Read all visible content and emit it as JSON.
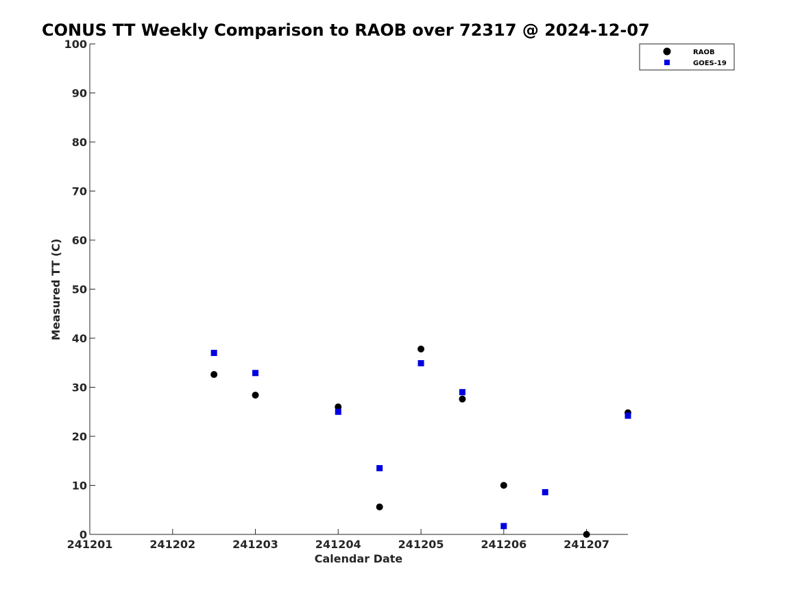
{
  "chart_data": {
    "type": "scatter",
    "title": "CONUS TT Weekly Comparison to RAOB over 72317 @ 2024-12-07",
    "xlabel": "Calendar Date",
    "ylabel": "Measured TT (C)",
    "x_tick_labels": [
      "241201",
      "241202",
      "241203",
      "241204",
      "241205",
      "241206",
      "241207"
    ],
    "x_tick_values": [
      1,
      2,
      3,
      4,
      5,
      6,
      7
    ],
    "xlim": [
      1,
      7.5
    ],
    "y_ticks": [
      0,
      10,
      20,
      30,
      40,
      50,
      60,
      70,
      80,
      90,
      100
    ],
    "ylim": [
      0,
      100
    ],
    "grid": false,
    "legend_position": "top-right",
    "series": [
      {
        "name": "RAOB",
        "color": "#000000",
        "marker": "circle",
        "points": [
          {
            "x": 2.5,
            "y": 32.6
          },
          {
            "x": 3.0,
            "y": 28.4
          },
          {
            "x": 4.0,
            "y": 26.0
          },
          {
            "x": 4.5,
            "y": 5.6
          },
          {
            "x": 5.0,
            "y": 37.8
          },
          {
            "x": 5.5,
            "y": 27.6
          },
          {
            "x": 6.0,
            "y": 10.0
          },
          {
            "x": 7.0,
            "y": 0.0
          },
          {
            "x": 7.5,
            "y": 24.8
          }
        ]
      },
      {
        "name": "GOES-19",
        "color": "#0000e0",
        "marker": "square",
        "points": [
          {
            "x": 2.5,
            "y": 37.0
          },
          {
            "x": 3.0,
            "y": 32.9
          },
          {
            "x": 4.0,
            "y": 25.0
          },
          {
            "x": 4.5,
            "y": 13.5
          },
          {
            "x": 5.0,
            "y": 34.9
          },
          {
            "x": 5.5,
            "y": 29.0
          },
          {
            "x": 6.0,
            "y": 1.7
          },
          {
            "x": 6.5,
            "y": 8.6
          },
          {
            "x": 7.5,
            "y": 24.2
          }
        ]
      }
    ]
  }
}
